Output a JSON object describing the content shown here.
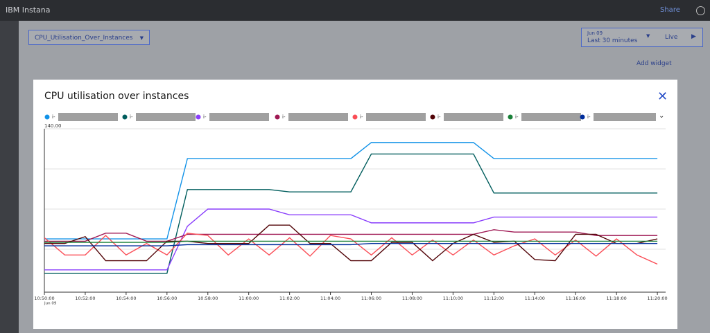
{
  "header": {
    "brand": "IBM Instana",
    "share": "Share"
  },
  "toolbar": {
    "dashboard": "CPU_Utilisation_Over_Instances",
    "date": "Jun 09",
    "range": "Last 30 minutes",
    "live": "Live",
    "add_widget": "Add widget"
  },
  "chart_data": {
    "type": "line",
    "title": "CPU utilisation over instances",
    "x": [
      "10:50:00",
      "10:51:00",
      "10:52:00",
      "10:53:00",
      "10:54:00",
      "10:55:00",
      "10:56:00",
      "10:57:00",
      "10:58:00",
      "10:59:00",
      "11:00:00",
      "11:01:00",
      "11:02:00",
      "11:03:00",
      "11:04:00",
      "11:05:00",
      "11:06:00",
      "11:07:00",
      "11:08:00",
      "11:09:00",
      "11:10:00",
      "11:11:00",
      "11:12:00",
      "11:13:00",
      "11:14:00",
      "11:15:00",
      "11:16:00",
      "11:17:00",
      "11:18:00",
      "11:19:00",
      "11:20:00"
    ],
    "xticks": [
      "10:50:00",
      "10:52:00",
      "10:54:00",
      "10:56:00",
      "10:58:00",
      "11:00:00",
      "11:02:00",
      "11:04:00",
      "11:06:00",
      "11:08:00",
      "11:10:00",
      "11:12:00",
      "11:14:00",
      "11:16:00",
      "11:18:00",
      "11:20:00"
    ],
    "x_date": "Jun 09",
    "ylim": [
      0,
      140
    ],
    "yticks": [
      {
        "value": 140,
        "label": "140.00"
      }
    ],
    "ygrid": [
      35,
      70,
      105,
      140
    ],
    "series": [
      {
        "name": "i-",
        "color": "#1192e8",
        "values": [
          44,
          44,
          44,
          44,
          44,
          44,
          44,
          114,
          114,
          114,
          114,
          114,
          114,
          114,
          114,
          114,
          128,
          128,
          128,
          128,
          128,
          128,
          114,
          114,
          114,
          114,
          114,
          114,
          114,
          114,
          114
        ]
      },
      {
        "name": "i-",
        "color": "#005d5d",
        "values": [
          14,
          14,
          14,
          14,
          14,
          14,
          14,
          87,
          87,
          87,
          87,
          87,
          85,
          85,
          85,
          85,
          118,
          118,
          118,
          118,
          118,
          118,
          84,
          84,
          84,
          84,
          84,
          84,
          84,
          84,
          84
        ]
      },
      {
        "name": "i-",
        "color": "#8a3ffc",
        "values": [
          17,
          17,
          17,
          17,
          17,
          17,
          17,
          55,
          70,
          70,
          70,
          70,
          65,
          65,
          65,
          65,
          58,
          58,
          58,
          58,
          58,
          58,
          63,
          63,
          63,
          63,
          63,
          63,
          63,
          63,
          63
        ]
      },
      {
        "name": "i-",
        "color": "#9f1853",
        "values": [
          42,
          42,
          42,
          49,
          49,
          42,
          42,
          48,
          48,
          48,
          48,
          48,
          48,
          48,
          48,
          48,
          48,
          48,
          48,
          48,
          48,
          48,
          52,
          50,
          50,
          50,
          50,
          47,
          47,
          47,
          47
        ]
      },
      {
        "name": "i-",
        "color": "#fa4d56",
        "values": [
          45,
          30,
          30,
          47,
          30,
          40,
          30,
          49,
          47,
          30,
          44,
          30,
          45,
          29,
          47,
          44,
          30,
          45,
          30,
          43,
          30,
          43,
          30,
          38,
          44,
          30,
          43,
          29,
          44,
          30,
          22
        ]
      },
      {
        "name": "i-",
        "color": "#520408",
        "values": [
          40,
          40,
          46,
          25,
          25,
          25,
          42,
          42,
          40,
          40,
          40,
          56,
          56,
          40,
          40,
          25,
          25,
          41,
          41,
          25,
          40,
          48,
          41,
          42,
          26,
          25,
          48,
          48,
          40,
          40,
          44
        ]
      },
      {
        "name": "i-",
        "color": "#198038",
        "values": [
          41,
          41,
          41,
          41,
          41,
          41,
          41,
          42,
          42,
          42,
          42,
          42,
          42,
          42,
          42,
          42,
          42,
          42,
          42,
          42,
          42,
          42,
          42,
          42,
          42,
          42,
          42,
          42,
          42,
          42,
          42
        ]
      },
      {
        "name": "i-",
        "color": "#002d9c",
        "values": [
          38,
          38,
          38,
          38,
          38,
          38,
          38,
          39,
          39,
          39,
          39,
          39,
          39,
          39,
          39,
          39,
          40,
          40,
          40,
          40,
          40,
          40,
          40,
          40,
          40,
          40,
          40,
          40,
          40,
          40,
          40
        ]
      }
    ]
  }
}
